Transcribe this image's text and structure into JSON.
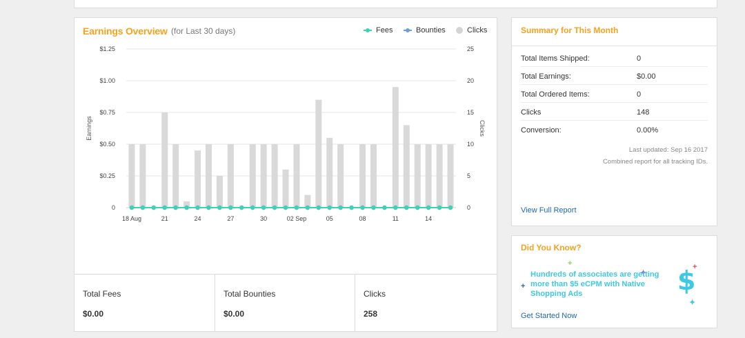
{
  "earnings": {
    "title": "Earnings Overview",
    "subtitle": "(for Last 30 days)",
    "legend": [
      {
        "name": "Fees",
        "color": "#3fd1b5"
      },
      {
        "name": "Bounties",
        "color": "#6f9fd8"
      },
      {
        "name": "Clicks",
        "color": "#d4d4d4"
      }
    ]
  },
  "chart_data": {
    "type": "bar",
    "x": [
      "18 Aug",
      "19 Aug",
      "20 Aug",
      "21 Aug",
      "22 Aug",
      "23 Aug",
      "24 Aug",
      "25 Aug",
      "26 Aug",
      "27 Aug",
      "28 Aug",
      "29 Aug",
      "30 Aug",
      "31 Aug",
      "01 Sep",
      "02 Sep",
      "03 Sep",
      "04 Sep",
      "05 Sep",
      "06 Sep",
      "07 Sep",
      "08 Sep",
      "09 Sep",
      "10 Sep",
      "11 Sep",
      "12 Sep",
      "13 Sep",
      "14 Sep",
      "15 Sep",
      "16 Sep"
    ],
    "x_tick_labels": [
      "18 Aug",
      "21",
      "24",
      "27",
      "30",
      "02 Sep",
      "05",
      "08",
      "11",
      "14"
    ],
    "series": [
      {
        "name": "Clicks",
        "axis": "right",
        "type": "bar",
        "values": [
          10,
          10,
          0,
          15,
          10,
          1,
          9,
          10,
          5,
          10,
          0,
          10,
          10,
          10,
          6,
          10,
          2,
          17,
          11,
          10,
          0,
          10,
          10,
          0,
          19,
          13,
          10,
          10,
          10,
          10
        ]
      },
      {
        "name": "Fees",
        "axis": "left",
        "type": "line",
        "values": [
          0,
          0,
          0,
          0,
          0,
          0,
          0,
          0,
          0,
          0,
          0,
          0,
          0,
          0,
          0,
          0,
          0,
          0,
          0,
          0,
          0,
          0,
          0,
          0,
          0,
          0,
          0,
          0,
          0,
          0
        ]
      },
      {
        "name": "Bounties",
        "axis": "left",
        "type": "line",
        "values": [
          0,
          0,
          0,
          0,
          0,
          0,
          0,
          0,
          0,
          0,
          0,
          0,
          0,
          0,
          0,
          0,
          0,
          0,
          0,
          0,
          0,
          0,
          0,
          0,
          0,
          0,
          0,
          0,
          0,
          0
        ]
      }
    ],
    "ylabel": "Earnings",
    "ylim": [
      0,
      1.25
    ],
    "y_tick_labels": [
      "0",
      "$0.25",
      "$0.50",
      "$0.75",
      "$1.00",
      "$1.25"
    ],
    "y2label": "Clicks",
    "y2lim": [
      0,
      25
    ],
    "y2_tick_labels": [
      "0",
      "5",
      "10",
      "15",
      "20",
      "25"
    ],
    "grid": true,
    "legend_position": "top-right"
  },
  "totals": [
    {
      "label": "Total Fees",
      "value": "$0.00"
    },
    {
      "label": "Total Bounties",
      "value": "$0.00"
    },
    {
      "label": "Clicks",
      "value": "258"
    }
  ],
  "summary": {
    "title": "Summary for This Month",
    "rows": [
      {
        "label": "Total Items Shipped:",
        "value": "0"
      },
      {
        "label": "Total Earnings:",
        "value": "$0.00"
      },
      {
        "label": "Total Ordered Items:",
        "value": "0"
      },
      {
        "label": "Clicks",
        "value": "148"
      },
      {
        "label": "Conversion:",
        "value": "0.00%"
      }
    ],
    "last_updated": "Last updated: Sep 16 2017",
    "note": "Combined report for all tracking IDs.",
    "link": "View Full Report"
  },
  "did_you_know": {
    "title": "Did You Know?",
    "text": "Hundreds of associates are getting more than $5 eCPM with Native Shopping Ads",
    "dollar": "$",
    "link": "Get Started Now"
  },
  "colors": {
    "accent": "#f5a21e",
    "link": "#1e68b3",
    "promo": "#3cc9e3"
  }
}
